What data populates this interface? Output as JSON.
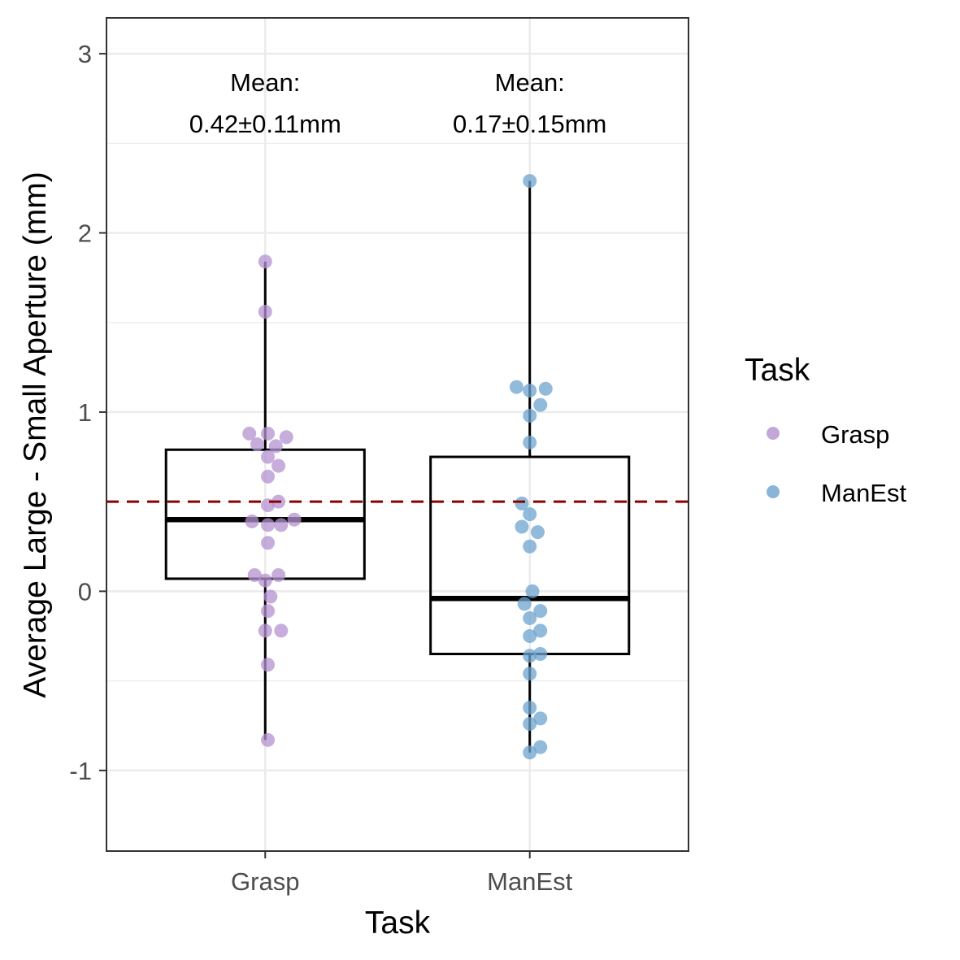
{
  "chart_data": {
    "type": "box",
    "xlabel": "Task",
    "ylabel": "Average Large - Small Aperture (mm)",
    "categories": [
      "Grasp",
      "ManEst"
    ],
    "ylim": [
      -1.45,
      3.2
    ],
    "y_ticks": [
      -1,
      0,
      1,
      2,
      3
    ],
    "y_tick_labels": [
      "-1",
      "0",
      "1",
      "2",
      "3"
    ],
    "grid": true,
    "reference_line": {
      "y": 0.5,
      "style": "dashed",
      "color": "#8b0000"
    },
    "legend": {
      "title": "Task",
      "position": "right",
      "entries": [
        {
          "label": "Grasp",
          "color": "#b491cf"
        },
        {
          "label": "ManEst",
          "color": "#6ca3cf"
        }
      ]
    },
    "annotations": [
      {
        "category": "Grasp",
        "line1": "Mean:",
        "line2": "0.42±0.11mm"
      },
      {
        "category": "ManEst",
        "line1": "Mean:",
        "line2": "0.17±0.15mm"
      }
    ],
    "boxes": [
      {
        "category": "Grasp",
        "min": -0.83,
        "q1": 0.07,
        "median": 0.4,
        "q3": 0.79,
        "max": 1.84
      },
      {
        "category": "ManEst",
        "min": -0.9,
        "q1": -0.35,
        "median": -0.04,
        "q3": 0.75,
        "max": 2.29
      }
    ],
    "series": [
      {
        "name": "Grasp",
        "color": "#b491cf",
        "points": [
          {
            "dx": 0,
            "y": 1.84
          },
          {
            "dx": 0,
            "y": 1.56
          },
          {
            "dx": -0.06,
            "y": 0.88
          },
          {
            "dx": 0.01,
            "y": 0.88
          },
          {
            "dx": 0.08,
            "y": 0.86
          },
          {
            "dx": -0.03,
            "y": 0.82
          },
          {
            "dx": 0.04,
            "y": 0.81
          },
          {
            "dx": 0.01,
            "y": 0.75
          },
          {
            "dx": 0.05,
            "y": 0.7
          },
          {
            "dx": 0.01,
            "y": 0.64
          },
          {
            "dx": 0.05,
            "y": 0.5
          },
          {
            "dx": 0.01,
            "y": 0.48
          },
          {
            "dx": -0.05,
            "y": 0.39
          },
          {
            "dx": 0.01,
            "y": 0.37
          },
          {
            "dx": 0.06,
            "y": 0.37
          },
          {
            "dx": 0.11,
            "y": 0.4
          },
          {
            "dx": 0.01,
            "y": 0.27
          },
          {
            "dx": -0.04,
            "y": 0.09
          },
          {
            "dx": 0.05,
            "y": 0.09
          },
          {
            "dx": 0.0,
            "y": 0.06
          },
          {
            "dx": 0.02,
            "y": -0.03
          },
          {
            "dx": 0.01,
            "y": -0.11
          },
          {
            "dx": 0.0,
            "y": -0.22
          },
          {
            "dx": 0.06,
            "y": -0.22
          },
          {
            "dx": 0.01,
            "y": -0.41
          },
          {
            "dx": 0.01,
            "y": -0.83
          }
        ]
      },
      {
        "name": "ManEst",
        "color": "#6ca3cf",
        "points": [
          {
            "dx": 0,
            "y": 2.29
          },
          {
            "dx": -0.05,
            "y": 1.14
          },
          {
            "dx": 0.0,
            "y": 1.12
          },
          {
            "dx": 0.06,
            "y": 1.13
          },
          {
            "dx": 0.04,
            "y": 1.04
          },
          {
            "dx": 0.0,
            "y": 0.98
          },
          {
            "dx": 0.0,
            "y": 0.83
          },
          {
            "dx": -0.03,
            "y": 0.49
          },
          {
            "dx": 0.0,
            "y": 0.43
          },
          {
            "dx": -0.03,
            "y": 0.36
          },
          {
            "dx": 0.03,
            "y": 0.33
          },
          {
            "dx": 0.0,
            "y": 0.25
          },
          {
            "dx": 0.01,
            "y": 0.0
          },
          {
            "dx": -0.02,
            "y": -0.07
          },
          {
            "dx": 0.04,
            "y": -0.11
          },
          {
            "dx": 0.0,
            "y": -0.15
          },
          {
            "dx": 0.04,
            "y": -0.22
          },
          {
            "dx": 0.0,
            "y": -0.25
          },
          {
            "dx": 0.0,
            "y": -0.36
          },
          {
            "dx": 0.04,
            "y": -0.35
          },
          {
            "dx": 0.0,
            "y": -0.46
          },
          {
            "dx": 0.0,
            "y": -0.65
          },
          {
            "dx": 0.04,
            "y": -0.71
          },
          {
            "dx": 0.0,
            "y": -0.74
          },
          {
            "dx": 0.04,
            "y": -0.87
          },
          {
            "dx": 0.0,
            "y": -0.9
          }
        ]
      }
    ]
  }
}
